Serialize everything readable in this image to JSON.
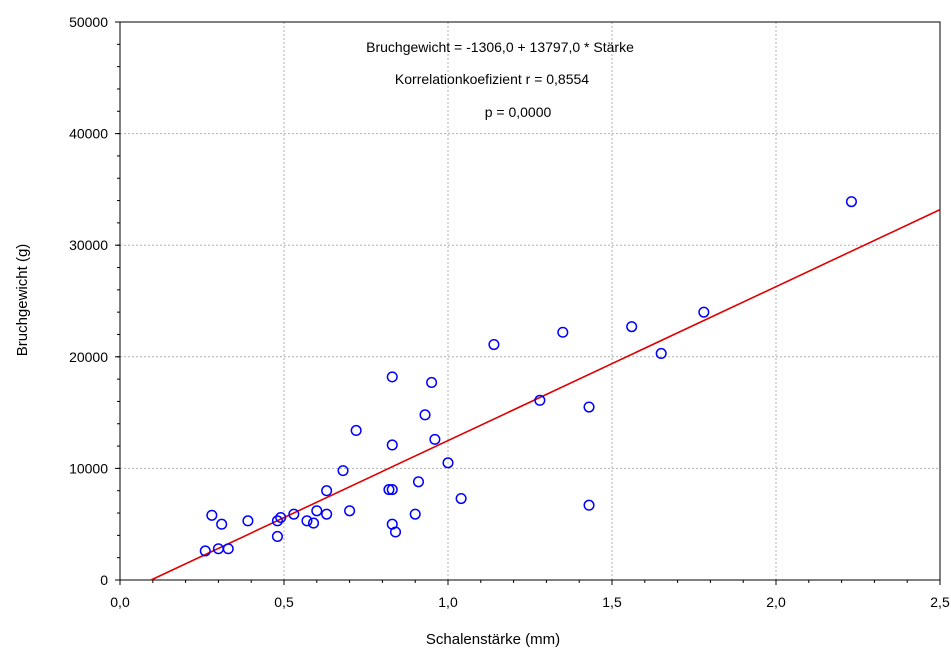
{
  "chart_data": {
    "type": "scatter",
    "xlabel": "Schalenstärke (mm)",
    "ylabel": "Bruchgewicht (g)",
    "xlim": [
      0,
      2.5
    ],
    "ylim": [
      0,
      50000
    ],
    "x_ticks": [
      "0,0",
      "0,5",
      "1,0",
      "1,5",
      "2,0",
      "2,5"
    ],
    "y_ticks": [
      "0",
      "10000",
      "20000",
      "30000",
      "40000",
      "50000"
    ],
    "grid": true,
    "annotations": [
      "Bruchgewicht = -1306,0 + 13797,0 * Stärke",
      "Korrelationkoefizient r = 0,8554",
      "p = 0,0000"
    ],
    "regression": {
      "intercept": -1306.0,
      "slope": 13797.0
    },
    "colors": {
      "points": "#0000ff",
      "line": "#e00000",
      "grid": "#b0b0b0"
    },
    "series": [
      {
        "x": [
          0.26,
          0.28,
          0.3,
          0.31,
          0.33,
          0.39,
          0.48,
          0.48,
          0.49,
          0.53,
          0.57,
          0.59,
          0.6,
          0.63,
          0.63,
          0.68,
          0.7,
          0.72,
          0.82,
          0.83,
          0.83,
          0.83,
          0.83,
          0.84,
          0.9,
          0.91,
          0.93,
          0.95,
          0.96,
          1.0,
          1.04,
          1.14,
          1.28,
          1.35,
          1.43,
          1.43,
          1.56,
          1.65,
          1.78,
          2.23
        ],
        "y": [
          2600,
          5800,
          2800,
          5000,
          2800,
          5300,
          3900,
          5300,
          5600,
          5900,
          5300,
          5100,
          6200,
          5900,
          8000,
          9800,
          6200,
          13400,
          8100,
          18200,
          12100,
          8100,
          5000,
          4300,
          5900,
          8800,
          14800,
          17700,
          12600,
          10500,
          7300,
          21100,
          16100,
          22200,
          15500,
          6700,
          22700,
          20300,
          24000,
          33900
        ]
      }
    ]
  }
}
